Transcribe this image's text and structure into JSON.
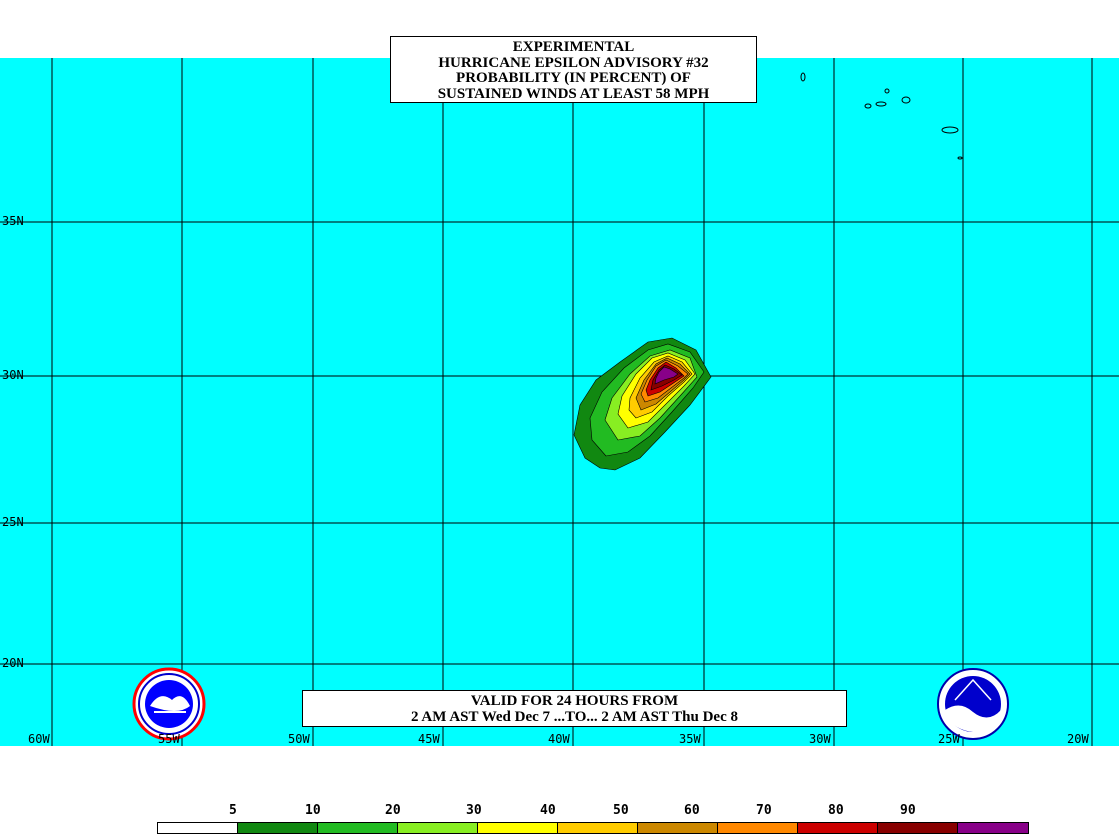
{
  "title": {
    "line1": "EXPERIMENTAL",
    "line2": "HURRICANE EPSILON ADVISORY #32",
    "line3": "PROBABILITY (IN PERCENT) OF",
    "line4": "SUSTAINED WINDS AT LEAST 58 MPH"
  },
  "valid": {
    "line1": "VALID FOR 24 HOURS FROM",
    "line2": "2 AM AST Wed Dec 7 ...TO... 2 AM AST Thu Dec 8"
  },
  "latitude_labels": [
    "35N",
    "30N",
    "25N",
    "20N"
  ],
  "longitude_labels": [
    "60W",
    "55W",
    "50W",
    "45W",
    "40W",
    "35W",
    "30W",
    "25W",
    "20W"
  ],
  "legend": {
    "labels": [
      "5",
      "10",
      "20",
      "30",
      "40",
      "50",
      "60",
      "70",
      "80",
      "90"
    ],
    "colors": [
      "#ffffff",
      "#118811",
      "#22bb22",
      "#88ee22",
      "#ffff00",
      "#ffcc00",
      "#cc8800",
      "#ff8800",
      "#cc0000",
      "#880000",
      "#880088"
    ]
  },
  "colors": {
    "ocean": "#00ffff",
    "grid": "#000000"
  },
  "logos": {
    "left": "nws-logo",
    "right": "noaa-logo"
  }
}
